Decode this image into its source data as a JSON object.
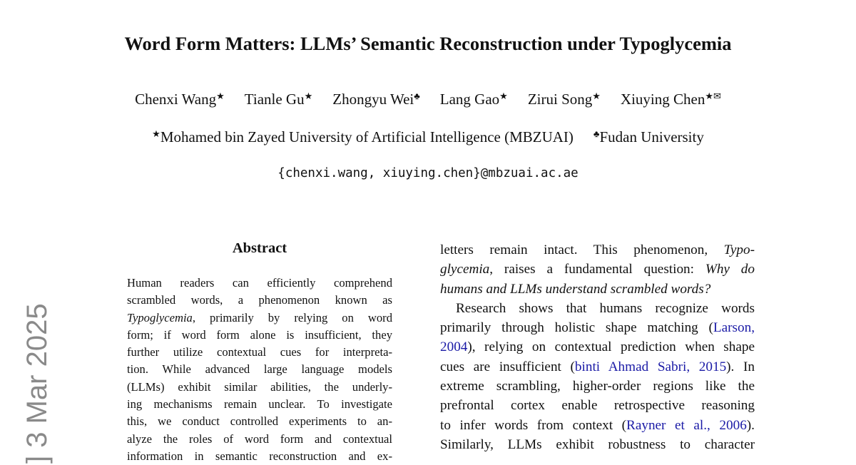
{
  "title": "Word Form Matters: LLMs’ Semantic Reconstruction under Typoglycemia",
  "authors": [
    {
      "name": "Chenxi Wang",
      "mark": "★"
    },
    {
      "name": "Tianle Gu",
      "mark": "★"
    },
    {
      "name": "Zhongyu Wei",
      "mark": "♣"
    },
    {
      "name": "Lang Gao",
      "mark": "★"
    },
    {
      "name": "Zirui Song",
      "mark": "★"
    },
    {
      "name": "Xiuying Chen",
      "mark": "★✉"
    }
  ],
  "affiliations": [
    {
      "mark": "★",
      "name": "Mohamed bin Zayed University of Artificial Intelligence (MBZUAI)"
    },
    {
      "mark": "♣",
      "name": "Fudan University"
    }
  ],
  "email": "{chenxi.wang, xiuying.chen}@mbzuai.ac.ae",
  "side_stamp": "] 3 Mar 2025",
  "abstract": {
    "heading": "Abstract",
    "lines": [
      [
        "Human readers can efficiently comprehend"
      ],
      [
        "scrambled words, a phenomenon known as"
      ],
      [
        {
          "text": "Typoglycemia",
          "style": "italic"
        },
        ", primarily by relying on word"
      ],
      [
        "form; if word form alone is insufficient, they"
      ],
      [
        "further utilize contextual cues for interpreta-"
      ],
      [
        "tion. While advanced large language models"
      ],
      [
        "(LLMs) exhibit similar abilities, the underly-"
      ],
      [
        "ing mechanisms remain unclear. To investigate"
      ],
      [
        "this, we conduct controlled experiments to an-"
      ],
      [
        "alyze the roles of word form and contextual"
      ],
      [
        "information in semantic reconstruction and ex-"
      ]
    ]
  },
  "body": {
    "lines": [
      [
        "letters remain intact.  This phenomenon, ",
        {
          "text": "Typo-",
          "style": "italic"
        }
      ],
      [
        {
          "text": "glycemia",
          "style": "italic"
        },
        ", raises a fundamental question: ",
        {
          "text": "Why do",
          "style": "italic"
        }
      ],
      [
        {
          "text": "humans and LLMs understand scrambled words?",
          "style": "italic"
        }
      ],
      [
        "Research shows that humans recognize words"
      ],
      [
        "primarily through holistic shape matching (",
        {
          "text": "Larson,",
          "style": "link"
        }
      ],
      [
        {
          "text": "2004",
          "style": "link"
        },
        "), relying on contextual prediction when shape"
      ],
      [
        "cues are insufficient (",
        {
          "text": "binti Ahmad Sabri, 2015",
          "style": "link"
        },
        "). In"
      ],
      [
        "extreme scrambling, higher-order regions like the"
      ],
      [
        "prefrontal cortex enable retrospective reasoning"
      ],
      [
        "to infer words from context (",
        {
          "text": "Rayner et al., 2006",
          "style": "link"
        },
        ")."
      ],
      [
        "Similarly, LLMs exhibit robustness to character"
      ]
    ]
  }
}
